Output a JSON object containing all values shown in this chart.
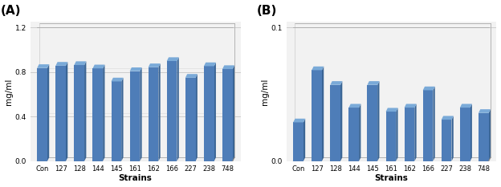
{
  "categories": [
    "Con",
    "127",
    "128",
    "144",
    "145",
    "161",
    "162",
    "166",
    "227",
    "238",
    "748"
  ],
  "values_A": [
    0.835,
    0.856,
    0.862,
    0.832,
    0.715,
    0.807,
    0.842,
    0.898,
    0.748,
    0.852,
    0.826
  ],
  "values_B": [
    0.029,
    0.068,
    0.057,
    0.04,
    0.057,
    0.037,
    0.04,
    0.053,
    0.031,
    0.04,
    0.036
  ],
  "bar_color_front": "#4e7db8",
  "bar_color_top": "#7aaad8",
  "bar_color_side": "#3a6595",
  "ylabel": "mg/ml",
  "xlabel": "Strains",
  "label_A": "(A)",
  "label_B": "(B)",
  "ylim_A": [
    0.0,
    1.2
  ],
  "ylim_B": [
    0.0,
    0.1
  ],
  "yticks_A": [
    0.0,
    0.4,
    0.8,
    1.2
  ],
  "yticks_B": [
    0.0,
    0.1
  ],
  "bg_color": "#f2f2f2",
  "grid_color": "#cccccc"
}
